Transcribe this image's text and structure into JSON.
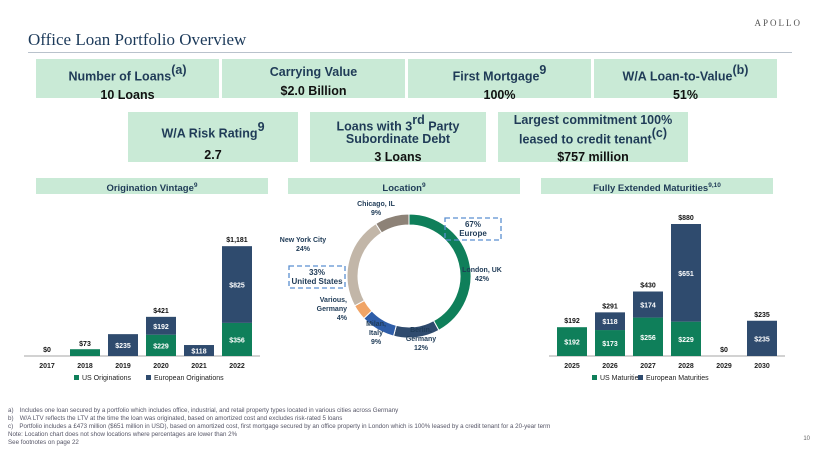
{
  "logo": "APOLLO",
  "title": "Office Loan Portfolio Overview",
  "kpis": {
    "loans": {
      "label": "Number of Loans",
      "sup": "(a)",
      "value": "10 Loans"
    },
    "carrying": {
      "label": "Carrying Value",
      "value": "$2.0 Billion"
    },
    "first_mortgage": {
      "label": "First Mortgage",
      "sup": "9",
      "value": "100%"
    },
    "ltv": {
      "label": "W/A Loan-to-Value",
      "sup": "(b)",
      "value": "51%"
    },
    "risk": {
      "label": "W/A Risk Rating",
      "sup": "9",
      "value": "2.7"
    },
    "sub_debt": {
      "label_a": "Loans with 3",
      "label_sup": "rd",
      "label_b": " Party",
      "label_c": "Subordinate Debt",
      "value": "3 Loans"
    },
    "largest": {
      "label_a": "Largest commitment 100%",
      "label_b": "leased to credit tenant",
      "sup": "(c)",
      "value": "$757 million"
    }
  },
  "sections": {
    "vintage": {
      "label": "Origination Vintage",
      "sup": "9"
    },
    "location": {
      "label": "Location",
      "sup": "9"
    },
    "maturity": {
      "label": "Fully Extended Maturities",
      "sup": "9,10"
    }
  },
  "colors": {
    "us": "#0f7f5a",
    "europe": "#2f4b6e",
    "kpi_bg": "#c9ead6",
    "tan": "#c2b6a8",
    "grey": "#8d8277",
    "orange": "#f0a466",
    "blue": "#2e5da8"
  },
  "chart_data": [
    {
      "type": "bar",
      "title": "Origination Vintage",
      "stacked": true,
      "categories": [
        "2017",
        "2018",
        "2019",
        "2020",
        "2021",
        "2022"
      ],
      "series": [
        {
          "name": "US Originations",
          "values": [
            0,
            73,
            0,
            229,
            0,
            356
          ]
        },
        {
          "name": "European Originations",
          "values": [
            0,
            0,
            235,
            192,
            118,
            825
          ]
        }
      ],
      "segment_labels": [
        [
          "",
          "$73",
          "",
          "$229",
          "",
          "$356"
        ],
        [
          "",
          "",
          "$235",
          "$192",
          "$118",
          "$825"
        ]
      ],
      "totals": [
        "$0",
        "",
        "",
        "$421",
        "",
        "$1,181"
      ],
      "legend": [
        "US Originations",
        "European Originations"
      ]
    },
    {
      "type": "pie",
      "title": "Location",
      "slices": [
        {
          "label": "London, UK",
          "value": 42,
          "text": "42%"
        },
        {
          "label": "Berlin, Germany",
          "value": 12,
          "text": "12%"
        },
        {
          "label": "Milan, Italy",
          "value": 9,
          "text": "9%"
        },
        {
          "label": "Various, Germany",
          "value": 4,
          "text": "4%"
        },
        {
          "label": "New York City",
          "value": 24,
          "text": "24%"
        },
        {
          "label": "Chicago, IL",
          "value": 9,
          "text": "9%"
        }
      ],
      "callouts": [
        {
          "value": "67%",
          "label": "Europe"
        },
        {
          "value": "33%",
          "label": "United States"
        }
      ]
    },
    {
      "type": "bar",
      "title": "Fully Extended Maturities",
      "stacked": true,
      "categories": [
        "2025",
        "2026",
        "2027",
        "2028",
        "2029",
        "2030"
      ],
      "series": [
        {
          "name": "US Maturities",
          "values": [
            192,
            173,
            256,
            229,
            0,
            0
          ]
        },
        {
          "name": "European Maturities",
          "values": [
            0,
            118,
            174,
            651,
            0,
            235
          ]
        }
      ],
      "segment_labels": [
        [
          "$192",
          "$173",
          "$256",
          "$229",
          "",
          ""
        ],
        [
          "",
          "$118",
          "$174",
          "$651",
          "",
          "$235"
        ]
      ],
      "totals": [
        "$192",
        "$291",
        "$430",
        "$880",
        "$0",
        "$235"
      ],
      "legend": [
        "US Maturities",
        "European Maturities"
      ]
    }
  ],
  "footnotes": {
    "a": "a) Includes one loan secured by a portfolio which includes office, industrial, and retail property types located in various cities across Germany",
    "b": "b) W/A LTV reflects the LTV at the time the loan was originated, based on amortized cost and excludes risk-rated 5 loans",
    "c": "c) Portfolio includes a £473 million ($651 million in USD), based on amortized cost, first mortgage secured by an office property in London which is 100% leased by a credit tenant for a 20-year term",
    "note": "Note: Location chart does not show locations where percentages are lower than 2%",
    "see": "See footnotes on page 22"
  },
  "page_number": "10"
}
